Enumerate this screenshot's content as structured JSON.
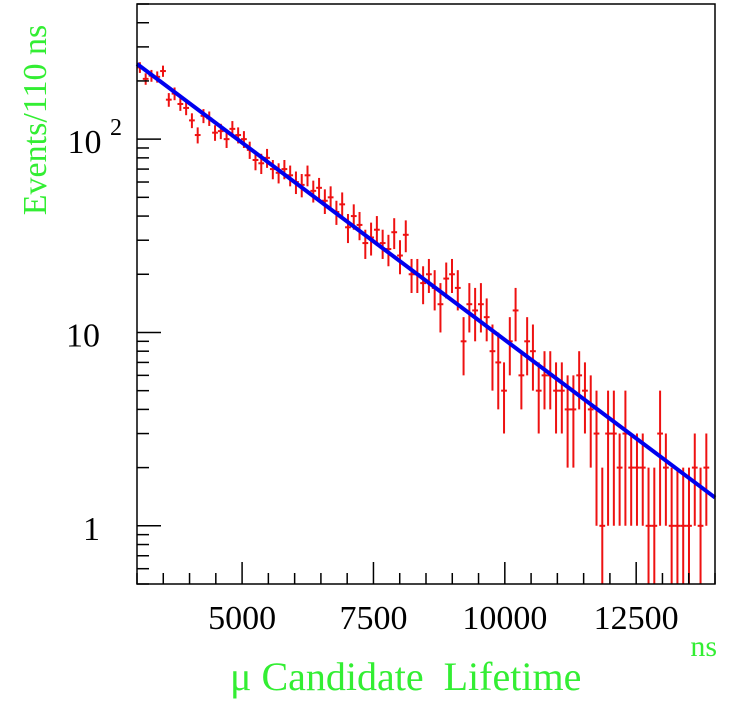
{
  "chart_data": {
    "type": "scatter",
    "xlabel": "μ Candidate  Lifetime",
    "xunit": "ns",
    "ylabel": "Events/110 ns",
    "xlim": [
      3000,
      14000
    ],
    "ylim": [
      0.5,
      500
    ],
    "yscale": "log",
    "grid": false,
    "x_ticks": [
      5000,
      7500,
      10000,
      12500
    ],
    "x_tick_labels": [
      "5000",
      "7500",
      "10000",
      "12500"
    ],
    "y_tick_labels": [
      {
        "value": 1,
        "base": "1",
        "exp": ""
      },
      {
        "value": 10,
        "base": "10",
        "exp": ""
      },
      {
        "value": 100,
        "base": "10",
        "exp": "2"
      }
    ],
    "bin_width": 110,
    "data_color": "#ee1111",
    "fit_color": "#0000ee",
    "axis_title_color": "#33ee33",
    "series": [
      {
        "kind": "errorbar",
        "x": [
          3055,
          3165,
          3275,
          3385,
          3495,
          3605,
          3715,
          3825,
          3935,
          4045,
          4155,
          4265,
          4375,
          4485,
          4595,
          4705,
          4815,
          4925,
          5035,
          5145,
          5255,
          5365,
          5475,
          5585,
          5695,
          5805,
          5915,
          6025,
          6135,
          6245,
          6355,
          6465,
          6575,
          6685,
          6795,
          6905,
          7015,
          7125,
          7235,
          7345,
          7455,
          7565,
          7675,
          7785,
          7895,
          8005,
          8115,
          8225,
          8335,
          8445,
          8555,
          8665,
          8775,
          8885,
          8995,
          9105,
          9215,
          9325,
          9435,
          9545,
          9655,
          9765,
          9875,
          9985,
          10095,
          10205,
          10315,
          10425,
          10535,
          10645,
          10755,
          10865,
          10975,
          11085,
          11195,
          11305,
          11415,
          11525,
          11635,
          11745,
          11855,
          11965,
          12075,
          12185,
          12295,
          12405,
          12515,
          12625,
          12735,
          12845,
          12955,
          13065,
          13175,
          13285,
          13395,
          13505,
          13615,
          13725,
          13835
        ],
        "y": [
          235,
          205,
          213,
          210,
          225,
          160,
          172,
          152,
          145,
          125,
          105,
          132,
          128,
          108,
          110,
          100,
          113,
          105,
          100,
          88,
          78,
          75,
          80,
          70,
          67,
          70,
          65,
          60,
          58,
          65,
          54,
          56,
          48,
          50,
          42,
          46,
          35,
          40,
          36,
          29,
          31,
          34,
          29,
          27,
          33,
          25,
          32,
          20,
          20,
          18,
          20,
          17,
          14,
          19,
          20,
          17,
          9,
          14,
          13,
          14,
          12,
          8,
          7,
          5,
          9,
          13,
          6,
          9,
          8,
          5,
          6,
          6,
          5,
          5,
          4,
          4,
          6,
          5,
          4,
          3,
          1,
          3,
          3,
          2,
          3,
          2,
          2,
          2,
          1,
          1,
          3,
          2,
          1,
          1,
          1,
          1,
          2,
          1,
          2
        ],
        "yerr": [
          15,
          14,
          15,
          14,
          15,
          13,
          13,
          12,
          12,
          11,
          10,
          11,
          11,
          10,
          10,
          10,
          11,
          10,
          10,
          9,
          9,
          9,
          9,
          8,
          8,
          8,
          8,
          8,
          8,
          8,
          7,
          7,
          7,
          7,
          6,
          7,
          6,
          6,
          6,
          5,
          6,
          6,
          5,
          5,
          6,
          5,
          6,
          4,
          4,
          4,
          4,
          4,
          4,
          4,
          4,
          4,
          3,
          4,
          4,
          4,
          3,
          3,
          3,
          2,
          3,
          4,
          2,
          3,
          3,
          2,
          2,
          2,
          2,
          2,
          2,
          2,
          2,
          2,
          2,
          2,
          1,
          2,
          2,
          1,
          2,
          1,
          1,
          1,
          1,
          1,
          2,
          1,
          1,
          1,
          1,
          1,
          1,
          1,
          1
        ]
      },
      {
        "kind": "fit",
        "function": "exponential",
        "x": [
          3000,
          14000
        ],
        "y": [
          245,
          1.4
        ]
      }
    ]
  }
}
